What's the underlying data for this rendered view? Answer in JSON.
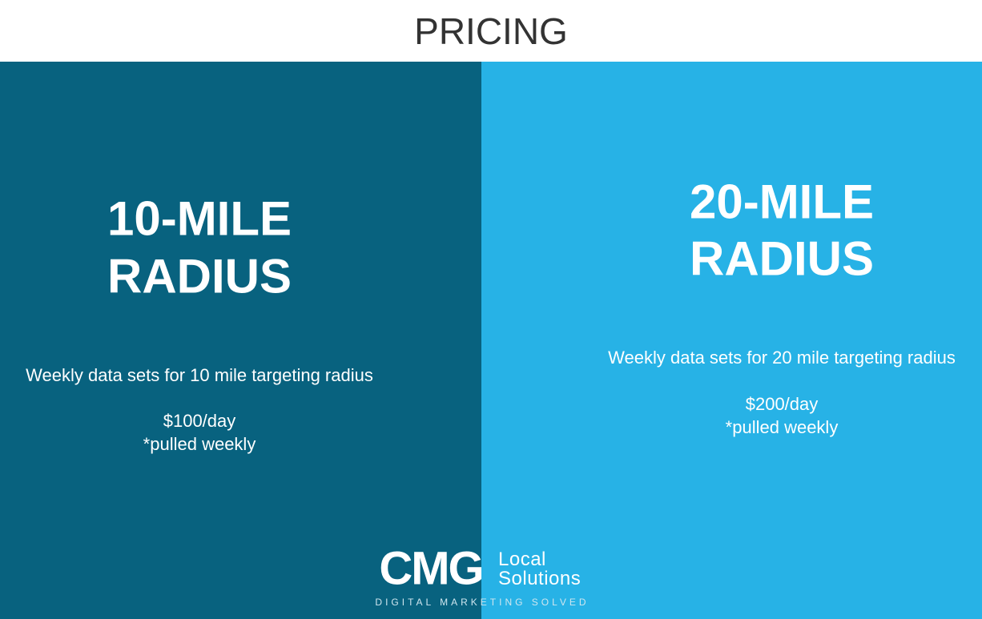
{
  "header": {
    "title": "PRICING"
  },
  "panels": [
    {
      "heading": [
        "10-MILE",
        "RADIUS"
      ],
      "description": "Weekly data sets for 10 mile targeting radius",
      "price": "$100/day",
      "note": "*pulled weekly"
    },
    {
      "heading": [
        "20-MILE",
        "RADIUS"
      ],
      "description": "Weekly data sets for 20 mile targeting radius",
      "price": "$200/day",
      "note": "*pulled weekly"
    }
  ],
  "logo": {
    "brand": "CMG",
    "line1": "Local",
    "line2": "Solutions",
    "tagline": "DIGITAL MARKETING SOLVED"
  }
}
